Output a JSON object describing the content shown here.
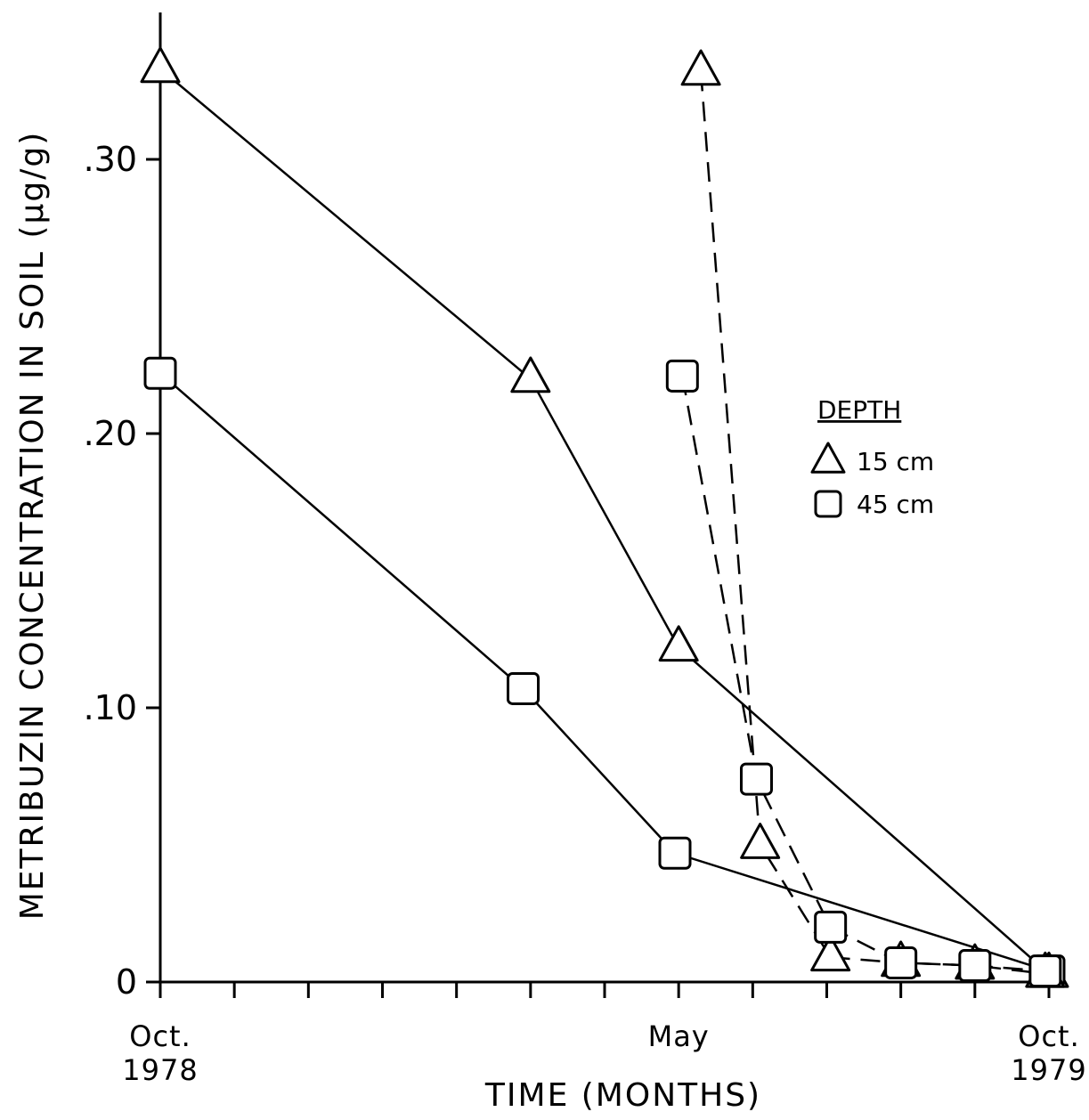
{
  "chart_data": {
    "type": "line",
    "xlabel": "TIME (MONTHS)",
    "ylabel": "METRIBUZIN CONCENTRATION IN SOIL (µg/g)",
    "xlim": [
      0,
      12
    ],
    "ylim": [
      0,
      0.33
    ],
    "x_tick_labels": [
      {
        "x": 0,
        "line1": "Oct.",
        "line2": "1978"
      },
      {
        "x": 7,
        "line1": "May",
        "line2": ""
      },
      {
        "x": 12,
        "line1": "Oct.",
        "line2": "1979"
      }
    ],
    "y_ticks": [
      {
        "value": 0,
        "label": "0"
      },
      {
        "value": 0.1,
        "label": ".10"
      },
      {
        "value": 0.2,
        "label": ".20"
      },
      {
        "value": 0.3,
        "label": ".30"
      }
    ],
    "legend": {
      "title": "DEPTH",
      "position": "right",
      "entries": [
        {
          "marker": "triangle",
          "label": "15 cm"
        },
        {
          "marker": "square",
          "label": "45 cm"
        }
      ]
    },
    "series": [
      {
        "depth": "15 cm",
        "marker": "triangle",
        "line": "solid",
        "x": [
          0,
          5,
          7,
          12
        ],
        "y": [
          0.333,
          0.22,
          0.122,
          0.003
        ]
      },
      {
        "depth": "45 cm",
        "marker": "square",
        "line": "solid",
        "x": [
          0,
          4.9,
          6.95,
          12
        ],
        "y": [
          0.222,
          0.107,
          0.047,
          0.004
        ]
      },
      {
        "depth": "15 cm",
        "marker": "triangle",
        "line": "dashed",
        "x": [
          7.3,
          8.1,
          9.05,
          10,
          11,
          11.95
        ],
        "y": [
          0.332,
          0.05,
          0.009,
          0.007,
          0.006,
          0.003
        ]
      },
      {
        "depth": "45 cm",
        "marker": "square",
        "line": "dashed",
        "x": [
          7.05,
          8.05,
          9.05,
          10,
          11,
          11.95
        ],
        "y": [
          0.221,
          0.074,
          0.02,
          0.007,
          0.006,
          0.004
        ]
      }
    ]
  }
}
